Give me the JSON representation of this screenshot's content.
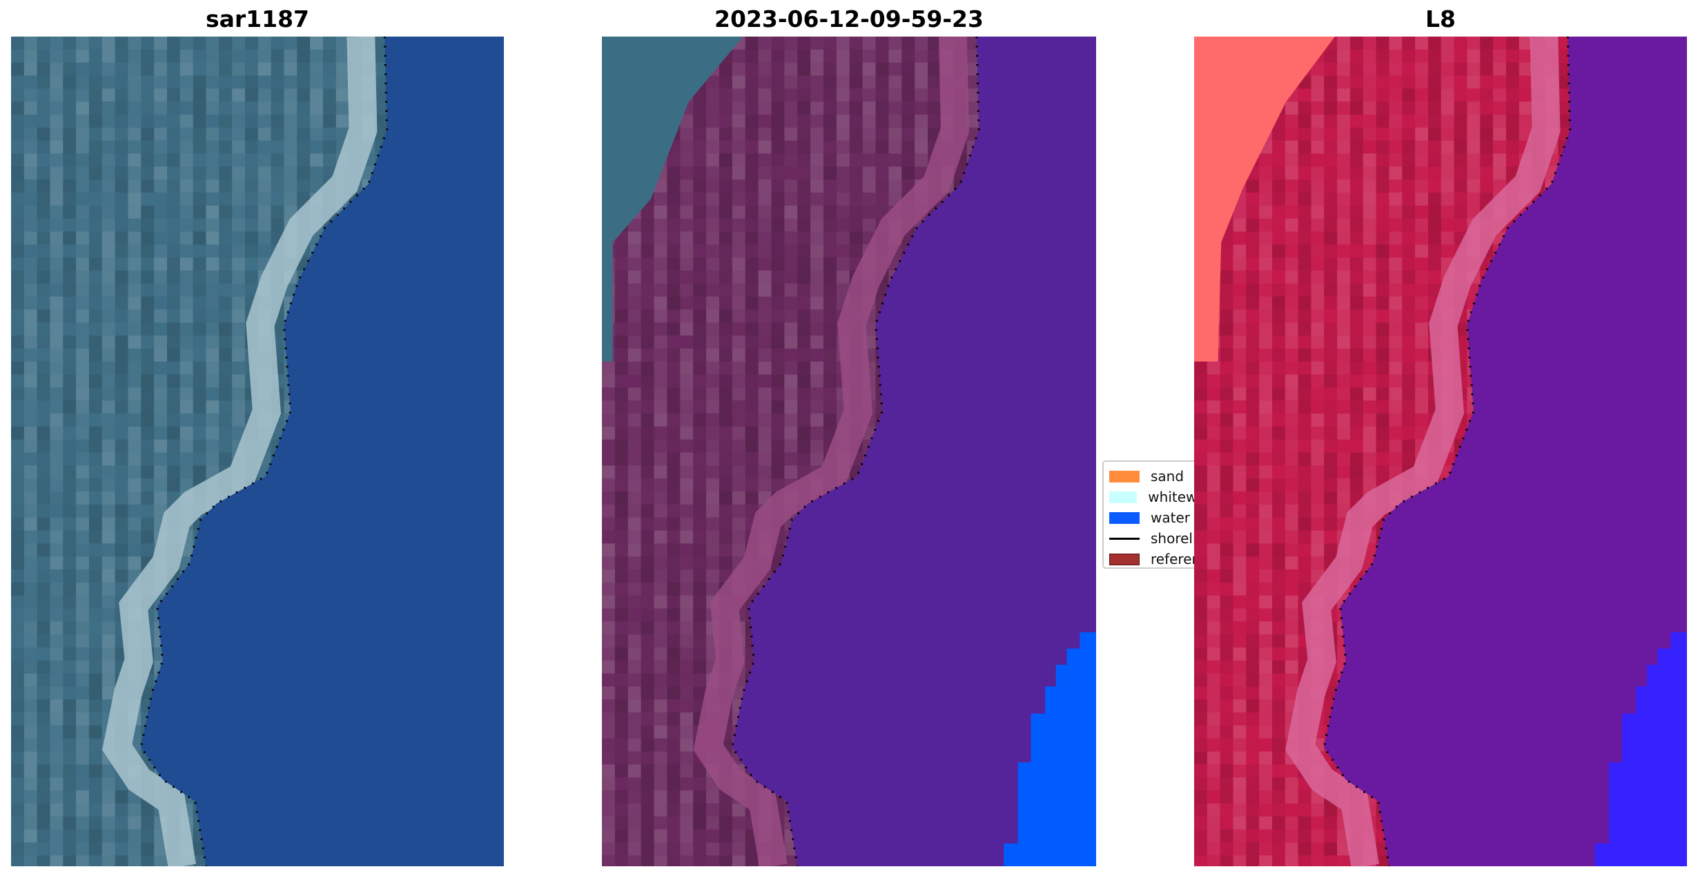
{
  "panels": [
    {
      "title": "sar1187",
      "land": "#3f6f86",
      "surf": "#a9c6cf",
      "water": "#1f4c93"
    },
    {
      "title": "2023-06-12-09-59-23",
      "land": "#6b2a5f",
      "surf": "#9a4c84",
      "water": "#55239a",
      "extra_a": "#3b6e85",
      "extra_b": "#005cff"
    },
    {
      "title": "L8",
      "land": "#c61a4c",
      "surf": "#d9679a",
      "water": "#6a1aa0",
      "extra_a": "#ff6b6b",
      "extra_b": "#3522ff"
    }
  ],
  "legend": {
    "items": [
      {
        "label": "sand",
        "color": "#ff8c3a",
        "kind": "patch"
      },
      {
        "label": "whitewater",
        "color": "#c8ffff",
        "kind": "patch"
      },
      {
        "label": "water",
        "color": "#0a5cff",
        "kind": "patch"
      },
      {
        "label": "shoreline",
        "color": "#000000",
        "kind": "line"
      },
      {
        "label": "reference",
        "color": "#a3302f",
        "kind": "patch"
      }
    ]
  }
}
